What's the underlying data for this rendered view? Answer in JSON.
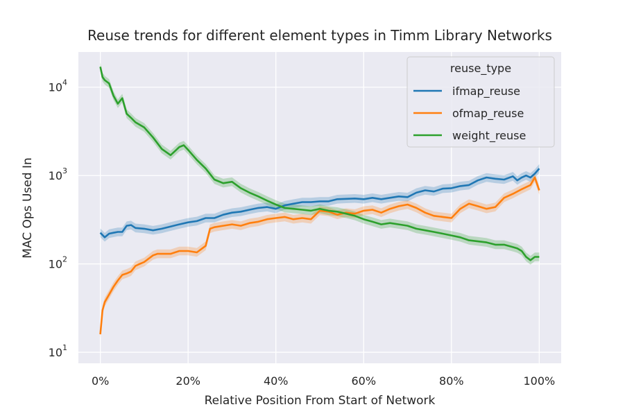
{
  "chart_data": {
    "type": "line",
    "title": "Reuse trends for different element types in Timm Library Networks",
    "xlabel": "Relative Position From Start of Network",
    "ylabel": "MAC Ops Used In",
    "x_ticks": [
      "0%",
      "20%",
      "40%",
      "60%",
      "80%",
      "100%"
    ],
    "x_tick_values": [
      0,
      20,
      40,
      60,
      80,
      100
    ],
    "y_ticks": [
      {
        "base": "10",
        "exp": "1",
        "value": 10
      },
      {
        "base": "10",
        "exp": "2",
        "value": 100
      },
      {
        "base": "10",
        "exp": "3",
        "value": 1000
      },
      {
        "base": "10",
        "exp": "4",
        "value": 10000
      }
    ],
    "xlim": [
      -5,
      105
    ],
    "ylim": [
      7.5,
      25000
    ],
    "yscale": "log",
    "grid": true,
    "legend": {
      "title": "reuse_type",
      "placement": "top-right"
    },
    "series": [
      {
        "name": "ifmap_reuse",
        "color": "#1f77b4",
        "x": [
          0,
          1,
          2,
          3,
          4,
          5,
          6,
          7,
          8,
          10,
          12,
          14,
          16,
          18,
          20,
          22,
          24,
          26,
          28,
          30,
          32,
          34,
          36,
          38,
          40,
          42,
          44,
          46,
          48,
          50,
          52,
          54,
          56,
          58,
          60,
          62,
          64,
          66,
          68,
          70,
          72,
          74,
          76,
          78,
          80,
          82,
          84,
          86,
          88,
          90,
          92,
          94,
          95,
          96,
          97,
          98,
          99,
          100
        ],
        "y": [
          225,
          200,
          220,
          225,
          230,
          230,
          270,
          275,
          255,
          250,
          240,
          250,
          265,
          280,
          295,
          305,
          330,
          330,
          360,
          380,
          390,
          410,
          430,
          440,
          420,
          460,
          480,
          500,
          500,
          510,
          510,
          540,
          545,
          550,
          540,
          560,
          540,
          560,
          580,
          570,
          640,
          680,
          660,
          710,
          720,
          760,
          780,
          880,
          950,
          920,
          900,
          980,
          880,
          950,
          1000,
          950,
          1050,
          1200
        ]
      },
      {
        "name": "ofmap_reuse",
        "color": "#ff7f0e",
        "x": [
          0,
          0.5,
          1,
          2,
          3,
          4,
          5,
          6,
          7,
          8,
          9,
          10,
          12,
          13,
          14,
          16,
          18,
          20,
          22,
          24,
          25,
          26,
          28,
          30,
          32,
          34,
          36,
          38,
          40,
          42,
          44,
          46,
          48,
          50,
          52,
          54,
          56,
          58,
          60,
          62,
          64,
          66,
          68,
          70,
          72,
          74,
          76,
          78,
          80,
          82,
          84,
          86,
          88,
          90,
          92,
          94,
          96,
          98,
          99,
          100
        ],
        "y": [
          16,
          30,
          37,
          45,
          55,
          65,
          75,
          78,
          82,
          95,
          100,
          105,
          125,
          130,
          130,
          130,
          140,
          140,
          135,
          160,
          250,
          260,
          270,
          280,
          270,
          290,
          300,
          320,
          330,
          340,
          320,
          330,
          320,
          400,
          390,
          360,
          380,
          370,
          400,
          410,
          380,
          420,
          450,
          470,
          430,
          380,
          350,
          340,
          330,
          420,
          480,
          450,
          420,
          440,
          560,
          620,
          700,
          780,
          950,
          680
        ]
      },
      {
        "name": "weight_reuse",
        "color": "#2ca02c",
        "x": [
          0,
          0.5,
          1,
          2,
          3,
          4,
          5,
          6,
          7,
          8,
          10,
          12,
          14,
          16,
          18,
          19,
          20,
          22,
          24,
          26,
          28,
          30,
          32,
          34,
          36,
          38,
          40,
          42,
          44,
          46,
          48,
          50,
          52,
          54,
          56,
          58,
          60,
          62,
          64,
          66,
          68,
          70,
          72,
          74,
          76,
          78,
          80,
          82,
          84,
          86,
          88,
          90,
          92,
          94,
          95,
          96,
          97,
          98,
          99,
          100
        ],
        "y": [
          17000,
          13000,
          12000,
          11000,
          8000,
          6500,
          7500,
          5000,
          4500,
          4000,
          3500,
          2700,
          2000,
          1700,
          2100,
          2200,
          1950,
          1500,
          1200,
          900,
          820,
          850,
          720,
          640,
          580,
          520,
          470,
          430,
          420,
          410,
          400,
          420,
          400,
          390,
          370,
          350,
          320,
          300,
          280,
          290,
          280,
          270,
          250,
          240,
          230,
          220,
          210,
          200,
          185,
          180,
          175,
          165,
          165,
          155,
          150,
          140,
          120,
          110,
          120,
          120
        ]
      }
    ]
  }
}
